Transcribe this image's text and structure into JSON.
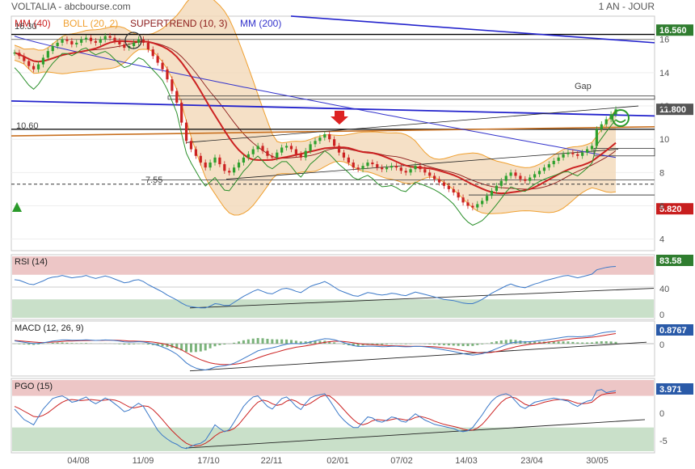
{
  "header": {
    "symbol": "VOLTALIA - abcbourse.com",
    "period": "1 AN - JOUR"
  },
  "colors": {
    "up": "#2ea02e",
    "down": "#cc2222",
    "boll": "#f0a030",
    "boll_fill": "#f3d8b8",
    "mm40": "#cc2222",
    "supertrend": "#8b1a1a",
    "mm200": "#3333cc",
    "rsi": "#3a78c8",
    "macd": "#3a78c8",
    "signal": "#cc2222",
    "pgo": "#3a78c8",
    "pink_zone": "#e9b8b8",
    "green_zone": "#bcd8bc",
    "badge_green": "#2f7d2f",
    "badge_red": "#c81e1e",
    "badge_blue": "#2a5aa8"
  },
  "chart_data": [
    {
      "type": "candlestick",
      "legend": [
        {
          "name": "MM (40)",
          "color": "#cc2222"
        },
        {
          "name": "BOLL (20, 2)",
          "color": "#f0a030"
        },
        {
          "name": "SUPERTREND (10, 3)",
          "color": "#8b1a1a"
        },
        {
          "name": "MM (200)",
          "color": "#3333cc"
        }
      ],
      "x_labels": [
        "04/08",
        "11/09",
        "17/10",
        "22/11",
        "02/01",
        "07/02",
        "14/03",
        "23/04",
        "30/05"
      ],
      "y_ticks": [
        4.0,
        6.0,
        8.0,
        10.0,
        12.0,
        14.0,
        16.0
      ],
      "ylim": [
        3.4,
        17.3
      ],
      "annotations": [
        {
          "label": "16.30",
          "value": 16.3
        },
        {
          "label": "10.60",
          "value": 10.6
        },
        {
          "label": "7.55",
          "value": 7.55
        },
        {
          "label": "Gap"
        }
      ],
      "badges": [
        {
          "label": "16.560",
          "value": 16.56
        },
        {
          "label": "11.800",
          "value": 11.8
        },
        {
          "label": "5.820",
          "value": 5.82
        }
      ],
      "closes": [
        15.2,
        15.0,
        14.7,
        14.4,
        14.2,
        14.5,
        14.9,
        15.3,
        15.6,
        15.8,
        16.0,
        15.9,
        15.7,
        15.8,
        16.0,
        16.1,
        15.9,
        15.8,
        16.0,
        16.2,
        16.1,
        15.9,
        15.7,
        15.5,
        15.6,
        15.8,
        16.0,
        15.8,
        15.4,
        15.0,
        14.6,
        14.2,
        13.6,
        12.9,
        12.2,
        11.0,
        9.9,
        9.4,
        9.0,
        8.6,
        8.3,
        8.6,
        8.9,
        8.5,
        8.1,
        8.0,
        8.3,
        8.6,
        8.9,
        9.1,
        9.4,
        9.6,
        9.3,
        9.0,
        8.9,
        9.2,
        9.5,
        9.6,
        9.4,
        9.1,
        8.9,
        9.3,
        9.7,
        9.9,
        10.1,
        10.3,
        10.0,
        9.6,
        9.2,
        8.9,
        8.6,
        8.3,
        8.2,
        8.4,
        8.6,
        8.5,
        8.3,
        8.2,
        8.3,
        8.4,
        8.3,
        8.1,
        8.0,
        8.2,
        8.4,
        8.2,
        8.0,
        7.8,
        7.6,
        7.4,
        7.2,
        7.0,
        6.8,
        6.5,
        6.2,
        6.0,
        5.9,
        6.1,
        6.3,
        6.6,
        6.9,
        7.2,
        7.5,
        7.8,
        8.0,
        7.8,
        7.6,
        7.5,
        7.7,
        7.9,
        8.1,
        8.3,
        8.5,
        8.7,
        8.9,
        9.1,
        9.2,
        9.1,
        9.0,
        9.2,
        9.4,
        9.6,
        10.6,
        10.9,
        11.2,
        11.5,
        11.8
      ]
    },
    {
      "type": "line",
      "title": "RSI (14)",
      "badge": "83.58",
      "last_value": 83.58,
      "y_ticks": [
        0,
        40.0
      ],
      "ylim": [
        0,
        100
      ],
      "zones": [
        30,
        70
      ],
      "values": [
        62,
        61,
        58,
        55,
        54,
        57,
        60,
        64,
        66,
        67,
        69,
        67,
        65,
        66,
        67,
        69,
        66,
        64,
        66,
        68,
        66,
        63,
        60,
        57,
        58,
        61,
        62,
        59,
        54,
        50,
        46,
        42,
        37,
        33,
        29,
        24,
        20,
        18,
        17,
        16,
        16,
        19,
        23,
        22,
        20,
        20,
        25,
        30,
        35,
        39,
        43,
        46,
        43,
        40,
        39,
        43,
        47,
        48,
        46,
        43,
        41,
        46,
        51,
        54,
        56,
        59,
        55,
        50,
        45,
        42,
        39,
        36,
        35,
        38,
        41,
        40,
        38,
        37,
        38,
        40,
        39,
        37,
        36,
        39,
        42,
        40,
        38,
        36,
        34,
        32,
        30,
        29,
        28,
        26,
        24,
        23,
        23,
        26,
        30,
        35,
        40,
        44,
        48,
        52,
        55,
        52,
        50,
        49,
        52,
        55,
        57,
        60,
        62,
        64,
        66,
        68,
        69,
        67,
        65,
        67,
        69,
        71,
        78,
        80,
        82,
        83,
        83.58
      ]
    },
    {
      "type": "line",
      "title": "MACD (12, 26, 9)",
      "badge": "0.8767",
      "last_value": 0.8767,
      "y_ticks": [
        0
      ],
      "ylim": [
        -2.2,
        1.5
      ],
      "series": [
        {
          "name": "MACD",
          "values": [
            0.2,
            0.15,
            0.1,
            0.05,
            0.0,
            0.02,
            0.06,
            0.12,
            0.18,
            0.22,
            0.26,
            0.26,
            0.24,
            0.24,
            0.25,
            0.27,
            0.25,
            0.23,
            0.24,
            0.26,
            0.25,
            0.22,
            0.18,
            0.13,
            0.11,
            0.12,
            0.14,
            0.12,
            0.06,
            -0.02,
            -0.12,
            -0.24,
            -0.38,
            -0.56,
            -0.76,
            -1.06,
            -1.38,
            -1.6,
            -1.75,
            -1.85,
            -1.88,
            -1.8,
            -1.68,
            -1.62,
            -1.58,
            -1.52,
            -1.4,
            -1.24,
            -1.06,
            -0.88,
            -0.7,
            -0.52,
            -0.42,
            -0.36,
            -0.3,
            -0.22,
            -0.12,
            -0.04,
            0.0,
            0.0,
            -0.02,
            0.04,
            0.12,
            0.2,
            0.28,
            0.35,
            0.34,
            0.28,
            0.18,
            0.08,
            -0.04,
            -0.14,
            -0.2,
            -0.2,
            -0.18,
            -0.18,
            -0.2,
            -0.22,
            -0.21,
            -0.19,
            -0.19,
            -0.21,
            -0.23,
            -0.22,
            -0.19,
            -0.2,
            -0.23,
            -0.27,
            -0.32,
            -0.38,
            -0.44,
            -0.5,
            -0.56,
            -0.64,
            -0.72,
            -0.78,
            -0.82,
            -0.78,
            -0.72,
            -0.62,
            -0.5,
            -0.36,
            -0.22,
            -0.08,
            0.05,
            0.1,
            0.12,
            0.12,
            0.14,
            0.17,
            0.21,
            0.25,
            0.3,
            0.35,
            0.4,
            0.46,
            0.5,
            0.5,
            0.49,
            0.5,
            0.53,
            0.57,
            0.68,
            0.76,
            0.82,
            0.86,
            0.8767
          ]
        },
        {
          "name": "Signal",
          "values": [
            0.22,
            0.2,
            0.17,
            0.14,
            0.11,
            0.09,
            0.08,
            0.09,
            0.11,
            0.13,
            0.16,
            0.18,
            0.19,
            0.2,
            0.21,
            0.22,
            0.23,
            0.23,
            0.23,
            0.24,
            0.24,
            0.24,
            0.23,
            0.21,
            0.19,
            0.18,
            0.17,
            0.16,
            0.14,
            0.11,
            0.06,
            0.0,
            -0.08,
            -0.18,
            -0.3,
            -0.45,
            -0.64,
            -0.83,
            -1.0,
            -1.15,
            -1.27,
            -1.38,
            -1.44,
            -1.48,
            -1.5,
            -1.5,
            -1.48,
            -1.43,
            -1.36,
            -1.26,
            -1.15,
            -1.02,
            -0.9,
            -0.79,
            -0.69,
            -0.6,
            -0.5,
            -0.41,
            -0.33,
            -0.26,
            -0.21,
            -0.16,
            -0.1,
            -0.04,
            0.03,
            0.09,
            0.14,
            0.17,
            0.17,
            0.15,
            0.11,
            0.06,
            0.01,
            -0.03,
            -0.06,
            -0.08,
            -0.1,
            -0.12,
            -0.14,
            -0.15,
            -0.16,
            -0.17,
            -0.18,
            -0.19,
            -0.19,
            -0.19,
            -0.2,
            -0.21,
            -0.23,
            -0.26,
            -0.3,
            -0.34,
            -0.38,
            -0.44,
            -0.5,
            -0.56,
            -0.61,
            -0.65,
            -0.66,
            -0.65,
            -0.62,
            -0.57,
            -0.5,
            -0.41,
            -0.32,
            -0.23,
            -0.16,
            -0.1,
            -0.05,
            -0.01,
            0.03,
            0.07,
            0.12,
            0.16,
            0.21,
            0.26,
            0.31,
            0.35,
            0.38,
            0.4,
            0.43,
            0.46,
            0.5,
            0.55,
            0.61,
            0.67,
            0.72
          ]
        }
      ]
    },
    {
      "type": "line",
      "title": "PGO (15)",
      "badge": "3.971",
      "last_value": 3.971,
      "y_ticks": [
        0,
        -5.0
      ],
      "ylim": [
        -7.5,
        6.0
      ],
      "zones": [
        -3,
        3
      ],
      "series": [
        {
          "name": "PGO",
          "values": [
            0.5,
            -0.5,
            -1.5,
            -2.0,
            -2.5,
            -1.0,
            0.5,
            1.5,
            2.5,
            2.8,
            3.0,
            2.5,
            1.8,
            2.0,
            2.4,
            2.8,
            2.0,
            1.5,
            2.0,
            2.6,
            2.2,
            1.5,
            0.8,
            0.0,
            0.3,
            1.0,
            1.6,
            1.0,
            -0.5,
            -2.0,
            -3.5,
            -4.5,
            -5.2,
            -5.8,
            -6.2,
            -6.8,
            -7.0,
            -6.6,
            -6.2,
            -6.0,
            -5.4,
            -4.0,
            -2.5,
            -3.2,
            -3.8,
            -3.4,
            -2.0,
            -0.5,
            1.0,
            2.0,
            2.8,
            3.0,
            2.0,
            1.0,
            0.5,
            1.5,
            2.5,
            2.8,
            2.0,
            1.0,
            0.4,
            1.6,
            2.6,
            3.0,
            3.2,
            3.4,
            2.2,
            0.8,
            -0.6,
            -1.6,
            -2.4,
            -3.0,
            -3.0,
            -2.0,
            -1.0,
            -1.2,
            -1.8,
            -2.0,
            -1.6,
            -1.0,
            -1.2,
            -1.8,
            -2.0,
            -1.2,
            -0.4,
            -1.0,
            -1.6,
            -2.0,
            -2.4,
            -2.6,
            -2.8,
            -3.0,
            -3.2,
            -3.6,
            -3.8,
            -3.6,
            -3.0,
            -1.8,
            -0.6,
            0.8,
            2.0,
            2.8,
            3.2,
            3.4,
            3.0,
            2.0,
            1.0,
            0.6,
            1.2,
            1.8,
            2.0,
            2.2,
            2.4,
            2.6,
            2.4,
            2.2,
            2.0,
            1.4,
            1.0,
            1.6,
            2.0,
            2.2,
            4.0,
            4.2,
            3.6,
            3.8,
            3.971
          ]
        },
        {
          "name": "Signal",
          "values": [
            1.0,
            0.6,
            0.1,
            -0.4,
            -0.9,
            -1.0,
            -0.7,
            -0.2,
            0.5,
            1.2,
            1.8,
            2.2,
            2.3,
            2.2,
            2.1,
            2.2,
            2.3,
            2.2,
            2.1,
            2.2,
            2.3,
            2.2,
            1.9,
            1.4,
            0.9,
            0.7,
            0.9,
            1.1,
            1.0,
            0.4,
            -0.5,
            -1.5,
            -2.6,
            -3.6,
            -4.5,
            -5.3,
            -6.0,
            -6.4,
            -6.5,
            -6.4,
            -6.0,
            -5.4,
            -4.6,
            -4.0,
            -3.7,
            -3.6,
            -3.2,
            -2.4,
            -1.3,
            -0.2,
            0.9,
            1.8,
            2.2,
            2.0,
            1.5,
            1.2,
            1.4,
            2.0,
            2.3,
            2.0,
            1.4,
            1.2,
            1.6,
            2.2,
            2.8,
            3.1,
            3.0,
            2.3,
            1.4,
            0.4,
            -0.6,
            -1.5,
            -2.2,
            -2.5,
            -2.2,
            -1.7,
            -1.5,
            -1.6,
            -1.7,
            -1.5,
            -1.3,
            -1.4,
            -1.6,
            -1.5,
            -1.1,
            -0.9,
            -1.1,
            -1.4,
            -1.8,
            -2.1,
            -2.4,
            -2.6,
            -2.8,
            -3.0,
            -3.3,
            -3.5,
            -3.5,
            -3.1,
            -2.4,
            -1.4,
            -0.3,
            0.8,
            1.8,
            2.5,
            2.8,
            2.6,
            2.0,
            1.4,
            1.1,
            1.2,
            1.5,
            1.8,
            2.0,
            2.2,
            2.3,
            2.3,
            2.2,
            1.9,
            1.6,
            1.5,
            1.6,
            1.8,
            2.6,
            3.2,
            3.4,
            3.5,
            3.6
          ]
        }
      ]
    }
  ]
}
